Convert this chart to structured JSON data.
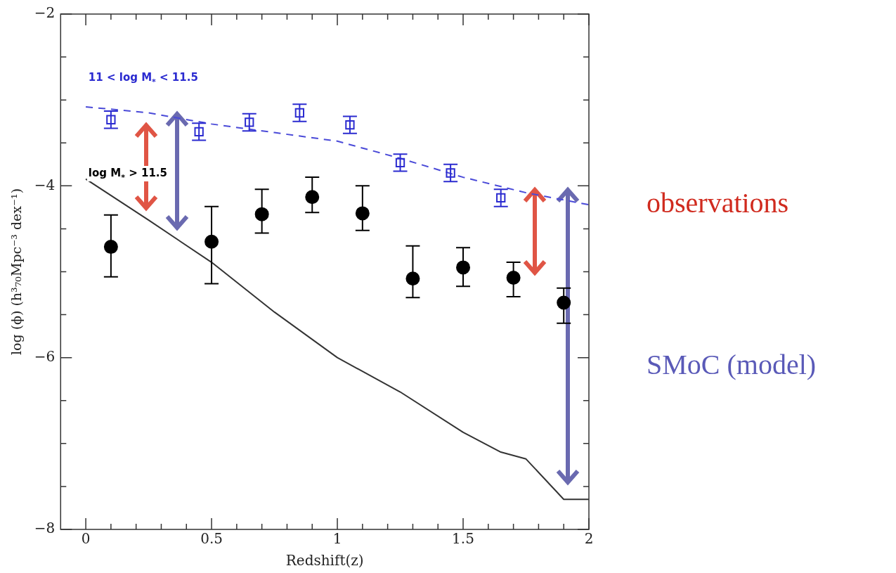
{
  "chart_data": {
    "type": "scatter",
    "xlabel": "Redshift(z)",
    "ylabel": "log (ϕ) (h³₇₀Mpc⁻³ dex⁻¹)",
    "xlim": [
      -0.1,
      2
    ],
    "ylim": [
      -8,
      -2
    ],
    "xticks": [
      0,
      {
        "value": 0.1,
        "label": null
      },
      {
        "value": 0.2,
        "label": null
      },
      {
        "value": 0.3,
        "label": null
      },
      {
        "value": 0.4,
        "label": null
      },
      0.5,
      {
        "value": 0.6,
        "label": null
      },
      {
        "value": 0.7,
        "label": null
      },
      {
        "value": 0.8,
        "label": null
      },
      {
        "value": 0.9,
        "label": null
      },
      1,
      {
        "value": 1.1,
        "label": null
      },
      {
        "value": 1.2,
        "label": null
      },
      {
        "value": 1.3,
        "label": null
      },
      {
        "value": 1.4,
        "label": null
      },
      1.5,
      {
        "value": 1.6,
        "label": null
      },
      {
        "value": 1.7,
        "label": null
      },
      {
        "value": 1.8,
        "label": null
      },
      {
        "value": 1.9,
        "label": null
      },
      2
    ],
    "yticks": [
      -8,
      {
        "value": -7.5,
        "label": null
      },
      {
        "value": -7,
        "label": null
      },
      {
        "value": -6.5,
        "label": null
      },
      -6,
      {
        "value": -5.5,
        "label": null
      },
      {
        "value": -5,
        "label": null
      },
      {
        "value": -4.5,
        "label": null
      },
      -4,
      {
        "value": -3.5,
        "label": null
      },
      {
        "value": -3,
        "label": null
      },
      {
        "value": -2.5,
        "label": null
      },
      -2
    ],
    "grid": false,
    "legend": false,
    "series": [
      {
        "name": "11 < log M$_{*}$ < 11.5",
        "marker": "square",
        "color": "#2b2bd0",
        "x": [
          0.1,
          0.45,
          0.65,
          0.85,
          1.05,
          1.25,
          1.45,
          1.65
        ],
        "values": [
          -3.23,
          -3.37,
          -3.26,
          -3.15,
          -3.29,
          -3.73,
          -3.85,
          -4.14
        ],
        "errors": [
          0.1,
          0.1,
          0.1,
          0.1,
          0.1,
          0.1,
          0.1,
          0.1
        ]
      },
      {
        "name": "log M$_{*}$ > 11.5",
        "marker": "circle",
        "color": "#000000",
        "x": [
          0.1,
          0.5,
          0.7,
          0.9,
          1.1,
          1.3,
          1.5,
          1.7,
          1.9
        ],
        "values": [
          -4.71,
          -4.65,
          -4.33,
          -4.13,
          -4.32,
          -5.08,
          -4.95,
          -5.07,
          -5.36
        ],
        "errors": [
          [
            -5.06,
            -4.34
          ],
          [
            -5.14,
            -4.24
          ],
          [
            -4.55,
            -4.04
          ],
          [
            -4.31,
            -3.9
          ],
          [
            -4.52,
            -4.0
          ],
          [
            -5.3,
            -4.7
          ],
          [
            -5.17,
            -4.72
          ],
          [
            -5.29,
            -4.89
          ],
          [
            -5.6,
            -5.19
          ]
        ]
      },
      {
        "type": "line",
        "line_style": "dashed",
        "marker": "none",
        "color": "#4a4ad8",
        "x": [
          0,
          0.25,
          0.5,
          0.75,
          1,
          1.25,
          1.5,
          1.75,
          2
        ],
        "values": [
          -3.08,
          -3.15,
          -3.28,
          -3.38,
          -3.48,
          -3.68,
          -3.9,
          -4.08,
          -4.22
        ]
      },
      {
        "type": "line",
        "line_style": "solid",
        "marker": "none",
        "color": "#333333",
        "x": [
          0,
          0.25,
          0.5,
          0.75,
          1,
          1.25,
          1.5,
          1.65,
          1.75,
          1.9,
          2
        ],
        "values": [
          -3.92,
          -4.4,
          -4.89,
          -5.47,
          -6.0,
          -6.4,
          -6.87,
          -7.1,
          -7.18,
          -7.65,
          -7.65
        ]
      }
    ],
    "annotations": [
      "observations",
      "SMoC  (model)"
    ]
  }
}
